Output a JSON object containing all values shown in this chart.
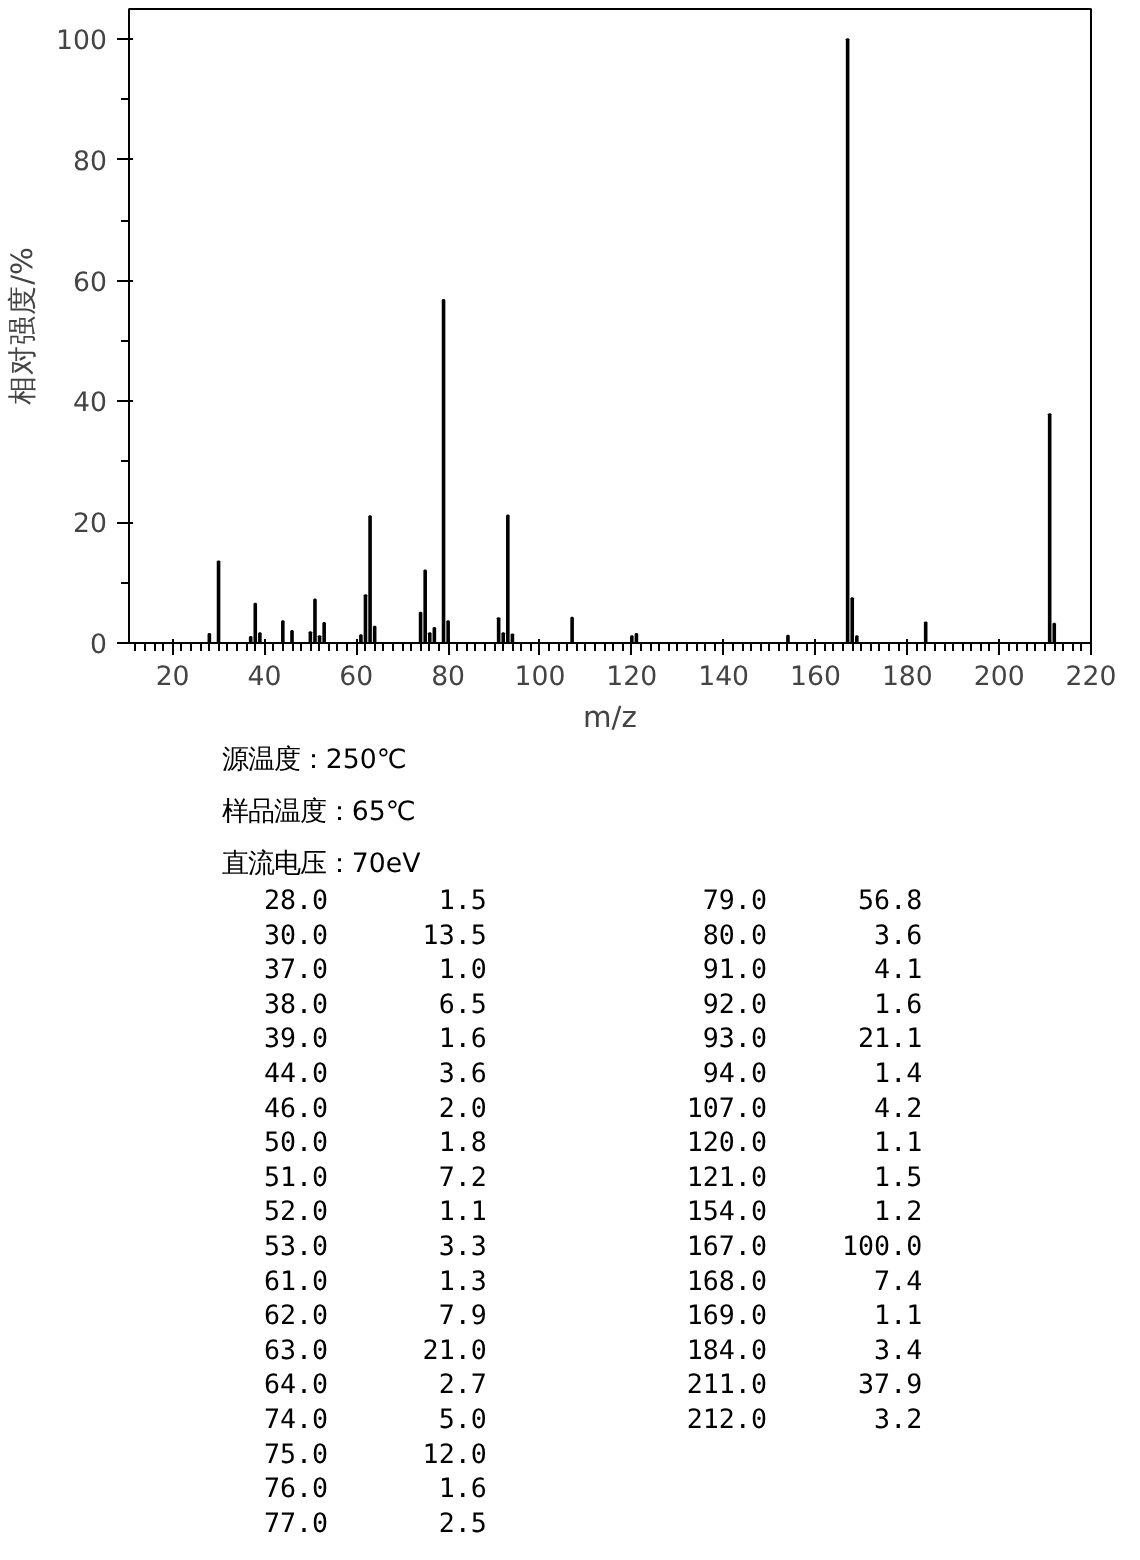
{
  "chart_data": [
    {
      "type": "bar",
      "xlabel": "m/z",
      "ylabel": "相对强度/%",
      "x": [
        28,
        30,
        37,
        38,
        39,
        44,
        46,
        50,
        51,
        52,
        53,
        61,
        62,
        63,
        64,
        74,
        75,
        76,
        77,
        79,
        80,
        91,
        92,
        93,
        94,
        107,
        120,
        121,
        154,
        167,
        168,
        169,
        184,
        211,
        212
      ],
      "values": [
        1.5,
        13.5,
        1.0,
        6.5,
        1.6,
        3.6,
        2.0,
        1.8,
        7.2,
        1.1,
        3.3,
        1.3,
        7.9,
        21.0,
        2.7,
        5.0,
        12.0,
        1.6,
        2.5,
        56.8,
        3.6,
        4.1,
        1.6,
        21.1,
        1.4,
        4.2,
        1.1,
        1.5,
        1.2,
        100.0,
        7.4,
        1.1,
        3.4,
        37.9,
        3.2
      ],
      "color": "#000000",
      "xlim": [
        10.5,
        220
      ],
      "ylim": [
        0,
        105
      ],
      "xticks": [
        20,
        40,
        60,
        80,
        100,
        120,
        140,
        160,
        180,
        200,
        220
      ],
      "yticks": [
        0,
        20,
        40,
        60,
        80,
        100
      ]
    },
    {
      "type": "other",
      "annotations": [
        "源温度：250℃",
        "样品温度：65℃",
        "直流电压：70eV"
      ],
      "categories": [
        "28.0",
        "30.0",
        "37.0",
        "38.0",
        "39.0",
        "44.0",
        "46.0",
        "50.0",
        "51.0",
        "52.0",
        "53.0",
        "61.0",
        "62.0",
        "63.0",
        "64.0",
        "74.0",
        "75.0",
        "76.0",
        "77.0",
        "79.0",
        "80.0",
        "91.0",
        "92.0",
        "93.0",
        "94.0",
        "107.0",
        "120.0",
        "121.0",
        "154.0",
        "167.0",
        "168.0",
        "169.0",
        "184.0",
        "211.0",
        "212.0"
      ],
      "value_labels": [
        "1.5",
        "13.5",
        "1.0",
        "6.5",
        "1.6",
        "3.6",
        "2.0",
        "1.8",
        "7.2",
        "1.1",
        "3.3",
        "1.3",
        "7.9",
        "21.0",
        "2.7",
        "5.0",
        "12.0",
        "1.6",
        "2.5",
        "56.8",
        "3.6",
        "4.1",
        "1.6",
        "21.1",
        "1.4",
        "4.2",
        "1.1",
        "1.5",
        "1.2",
        "100.0",
        "7.4",
        "1.1",
        "3.4",
        "37.9",
        "3.2"
      ]
    }
  ]
}
